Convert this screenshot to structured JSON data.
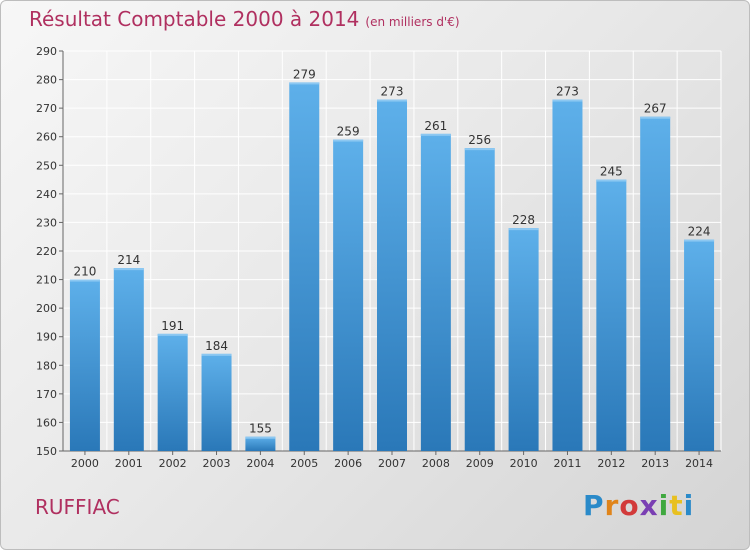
{
  "chart_data": {
    "type": "bar",
    "title": "Résultat Comptable 2000 à 2014",
    "subtitle": "(en milliers d'€)",
    "categories": [
      "2000",
      "2001",
      "2002",
      "2003",
      "2004",
      "2005",
      "2006",
      "2007",
      "2008",
      "2009",
      "2010",
      "2011",
      "2012",
      "2013",
      "2014"
    ],
    "values": [
      210,
      214,
      191,
      184,
      155,
      279,
      259,
      273,
      261,
      256,
      228,
      273,
      245,
      267,
      224
    ],
    "ylim": [
      150,
      290
    ],
    "yticks": [
      150,
      160,
      170,
      180,
      190,
      200,
      210,
      220,
      230,
      240,
      250,
      260,
      270,
      280,
      290
    ],
    "xlabel": "",
    "ylabel": "",
    "grid": true,
    "colors": {
      "bar_top": "#5eb0ea",
      "bar_bottom": "#2a78b8",
      "grid": "#ffffff",
      "title": "#b03060"
    }
  },
  "footer": {
    "city": "RUFFIAC",
    "logo": [
      "P",
      "r",
      "o",
      "x",
      "i",
      "t",
      "i"
    ]
  }
}
